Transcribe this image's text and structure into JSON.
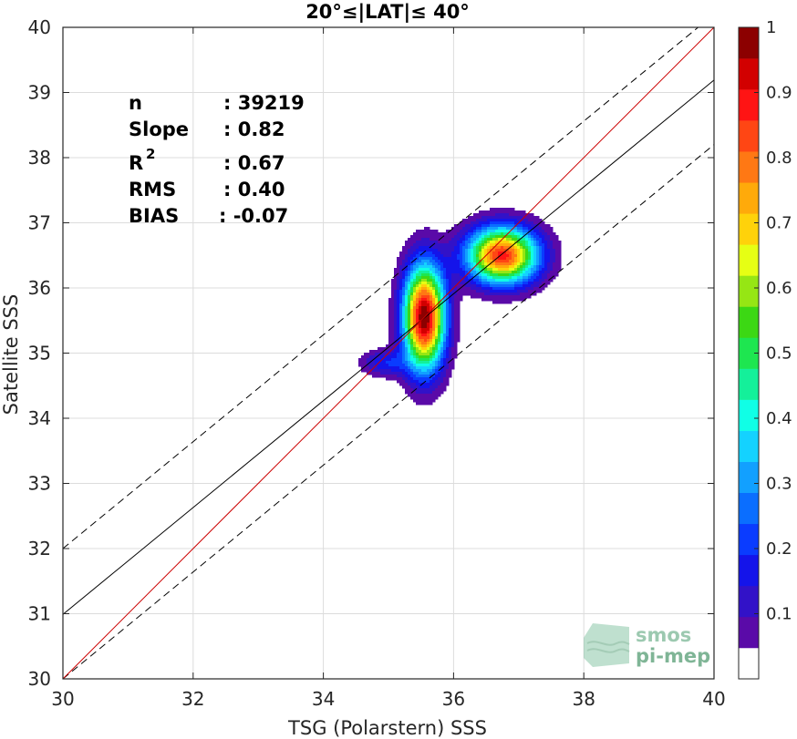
{
  "chart_data": {
    "type": "contour",
    "title": "20°≤|LAT|≤ 40°",
    "xlabel": "TSG (Polarstern) SSS",
    "ylabel": "Satellite SSS",
    "xlim": [
      30,
      40
    ],
    "ylim": [
      30,
      40
    ],
    "xticks": [
      "30",
      "32",
      "34",
      "36",
      "38",
      "40"
    ],
    "yticks": [
      "30",
      "31",
      "32",
      "33",
      "34",
      "35",
      "36",
      "37",
      "38",
      "39",
      "40"
    ],
    "grid": true,
    "stats": {
      "n_label": "n",
      "n_value": ": 39219",
      "slope_label": "Slope",
      "slope_value": ": 0.82",
      "r2_label": "R",
      "r2_sup": "2",
      "r2_value": ": 0.67",
      "rms_label": "RMS",
      "rms_value": ": 0.40",
      "bias_label": "BIAS",
      "bias_value": ": -0.07"
    },
    "lines": {
      "identity": {
        "slope": 1,
        "intercept": 0,
        "color": "#cc0000"
      },
      "fit": {
        "slope": 0.82,
        "intercept": 6.39,
        "color": "#000000"
      },
      "fit_upper": {
        "slope": 0.82,
        "intercept": 7.4,
        "color": "#000000",
        "dash": true
      },
      "fit_lower": {
        "slope": 0.82,
        "intercept": 5.4,
        "color": "#000000",
        "dash": true
      }
    },
    "density_peaks": [
      {
        "x": 35.55,
        "y": 35.55,
        "sx": 0.22,
        "sy": 0.55,
        "amp": 1.0
      },
      {
        "x": 36.75,
        "y": 36.5,
        "sx": 0.38,
        "sy": 0.3,
        "amp": 0.88
      },
      {
        "x": 34.95,
        "y": 34.85,
        "sx": 0.25,
        "sy": 0.14,
        "amp": 0.18
      }
    ],
    "colorbar": {
      "ticks": [
        "0.1",
        "0.2",
        "0.3",
        "0.4",
        "0.5",
        "0.6",
        "0.7",
        "0.8",
        "0.9",
        "1"
      ],
      "colors": [
        "#ffffff",
        "#5a0aa8",
        "#3212c8",
        "#1414ea",
        "#0a3cff",
        "#0a6eff",
        "#12a0ff",
        "#14d2ff",
        "#10ffe6",
        "#14f09a",
        "#1ee650",
        "#3cd814",
        "#96e614",
        "#e6ff14",
        "#ffd20a",
        "#ffaa0a",
        "#ff7814",
        "#ff4614",
        "#ff1414",
        "#d20000",
        "#8c0000"
      ]
    },
    "logo": {
      "line1": "smos",
      "line2": "pi-mep"
    }
  }
}
